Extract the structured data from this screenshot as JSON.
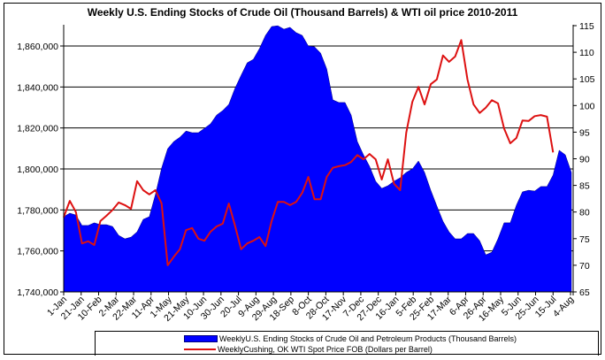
{
  "chart_data": {
    "type": "area+line",
    "title": "Weekly U.S. Ending Stocks of Crude Oil  (Thousand Barrels) & WTI oil price 2010-2011",
    "xlabel": "",
    "ylabel_left": "",
    "ylabel_right": "",
    "ylim_left": [
      1740000,
      1870000
    ],
    "ylim_right": [
      65,
      115
    ],
    "left_ticks": [
      "1,740,000",
      "1,760,000",
      "1,780,000",
      "1,800,000",
      "1,820,000",
      "1,840,000",
      "1,860,000"
    ],
    "left_tick_values": [
      1740000,
      1760000,
      1780000,
      1800000,
      1820000,
      1840000,
      1860000
    ],
    "right_ticks": [
      "65",
      "70",
      "75",
      "80",
      "85",
      "90",
      "95",
      "100",
      "105",
      "110",
      "115"
    ],
    "right_tick_values": [
      65,
      70,
      75,
      80,
      85,
      90,
      95,
      100,
      105,
      110,
      115
    ],
    "x_tick_labels": [
      "1-Jan",
      "21-Jan",
      "10-Feb",
      "2-Mar",
      "22-Mar",
      "11-Apr",
      "1-May",
      "21-May",
      "10-Jun",
      "30-Jun",
      "20-Jul",
      "9-Aug",
      "29-Aug",
      "18-Sep",
      "8-Oct",
      "28-Oct",
      "17-Nov",
      "7-Dec",
      "27-Dec",
      "16-Jan",
      "5-Feb",
      "25-Feb",
      "17-Mar",
      "6-Apr",
      "26-Apr",
      "16-May",
      "5-Jun",
      "25-Jun",
      "15-Jul",
      "4-Aug"
    ],
    "x_tick_day_spacing": 20,
    "x_day_range": [
      0,
      590
    ],
    "grid": "horizontal at left-axis ticks",
    "legend_position": "bottom",
    "series": [
      {
        "name": "WeeklyU.S. Ending Stocks of Crude Oil and Petroleum Products  (Thousand Barrels)",
        "type": "area",
        "axis": "left",
        "color": "#0000FF",
        "day_step": 7,
        "values": [
          1776700,
          1778400,
          1777500,
          1772400,
          1772400,
          1773700,
          1772800,
          1772800,
          1771900,
          1767600,
          1765900,
          1766700,
          1769300,
          1775400,
          1776700,
          1787500,
          1800400,
          1809900,
          1813400,
          1815500,
          1818500,
          1817700,
          1817700,
          1819800,
          1822000,
          1826300,
          1828500,
          1831500,
          1839300,
          1845700,
          1851800,
          1853500,
          1858700,
          1865200,
          1869500,
          1869900,
          1868200,
          1869100,
          1866500,
          1865200,
          1860000,
          1859600,
          1856500,
          1848800,
          1833700,
          1832400,
          1832400,
          1826300,
          1813400,
          1806900,
          1801300,
          1794000,
          1790500,
          1791800,
          1794000,
          1795700,
          1798300,
          1800000,
          1803900,
          1798300,
          1789600,
          1781900,
          1774500,
          1769300,
          1765900,
          1765900,
          1768500,
          1768500,
          1765000,
          1758100,
          1759400,
          1765900,
          1773700,
          1773700,
          1782300,
          1788800,
          1789600,
          1789200,
          1791400,
          1791400,
          1797000,
          1809100,
          1806900,
          1798300
        ]
      },
      {
        "name": "WeeklyCushing, OK WTI Spot Price FOB  (Dollars per Barrel)",
        "type": "line",
        "axis": "right",
        "color": "#DD1111",
        "day_step": 7,
        "values": [
          79.0,
          82.1,
          80.0,
          74.1,
          74.5,
          73.8,
          78.3,
          79.3,
          80.4,
          81.8,
          81.3,
          80.6,
          85.8,
          84.1,
          83.3,
          84.1,
          81.6,
          70.0,
          71.6,
          73.0,
          76.6,
          77.0,
          75.0,
          74.6,
          76.3,
          77.3,
          77.8,
          81.6,
          77.5,
          73.0,
          74.1,
          74.6,
          75.3,
          73.6,
          78.3,
          81.9,
          81.9,
          81.3,
          81.9,
          83.6,
          86.6,
          82.4,
          82.4,
          86.6,
          88.3,
          88.6,
          88.8,
          89.4,
          90.7,
          89.9,
          90.9,
          89.9,
          86.1,
          89.9,
          85.3,
          84.1,
          94.9,
          100.7,
          103.5,
          100.2,
          104.0,
          104.9,
          109.4,
          108.2,
          109.2,
          112.3,
          104.9,
          100.2,
          98.6,
          99.6,
          101.0,
          100.4,
          95.7,
          92.9,
          93.9,
          97.2,
          97.1,
          98.0,
          98.2,
          97.9,
          91.2
        ]
      }
    ]
  },
  "legend": {
    "items": [
      "WeeklyU.S. Ending Stocks of Crude Oil and Petroleum Products  (Thousand Barrels)",
      "WeeklyCushing, OK WTI Spot Price FOB  (Dollars per Barrel)"
    ]
  }
}
